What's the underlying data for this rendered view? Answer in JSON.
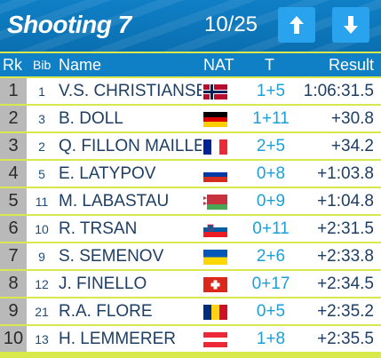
{
  "header": {
    "title": "Shooting 7",
    "counter": "10/25"
  },
  "columns": {
    "rank": "Rk",
    "bib": "Bib",
    "name": "Name",
    "nat": "NAT",
    "time": "T",
    "result": "Result"
  },
  "rows": [
    {
      "rank": "1",
      "bib": "1",
      "name": "V.S. CHRISTIANSEN",
      "flag": "NOR",
      "t": "1+5",
      "result": "1:06:31.5"
    },
    {
      "rank": "2",
      "bib": "3",
      "name": "B. DOLL",
      "flag": "GER",
      "t": "1+11",
      "result": "+30.8"
    },
    {
      "rank": "3",
      "bib": "2",
      "name": "Q. FILLON MAILLET",
      "flag": "FRA",
      "t": "2+5",
      "result": "+34.2"
    },
    {
      "rank": "4",
      "bib": "5",
      "name": "E. LATYPOV",
      "flag": "RUS",
      "t": "0+8",
      "result": "+1:03.8"
    },
    {
      "rank": "5",
      "bib": "11",
      "name": "M. LABASTAU",
      "flag": "BLR",
      "t": "0+9",
      "result": "+1:04.8"
    },
    {
      "rank": "6",
      "bib": "10",
      "name": "R. TRSAN",
      "flag": "SLO",
      "t": "0+11",
      "result": "+2:31.5"
    },
    {
      "rank": "7",
      "bib": "9",
      "name": "S. SEMENOV",
      "flag": "UKR",
      "t": "2+6",
      "result": "+2:33.8"
    },
    {
      "rank": "8",
      "bib": "12",
      "name": "J. FINELLO",
      "flag": "SUI",
      "t": "0+17",
      "result": "+2:34.5"
    },
    {
      "rank": "9",
      "bib": "21",
      "name": "R.A. FLORE",
      "flag": "ROU",
      "t": "0+5",
      "result": "+2:35.2"
    },
    {
      "rank": "10",
      "bib": "13",
      "name": "H. LEMMERER",
      "flag": "AUT",
      "t": "1+8",
      "result": "+2:35.5"
    }
  ],
  "colors": {
    "header_blue": "#0f7fc6",
    "button_blue": "#2aa3ee",
    "border_yellow": "#d9e84a",
    "rank_gray": "#b9b9b9",
    "shooting_cyan": "#1a9fd8"
  },
  "icons": {
    "up": "arrow-up-icon",
    "down": "arrow-down-icon"
  }
}
